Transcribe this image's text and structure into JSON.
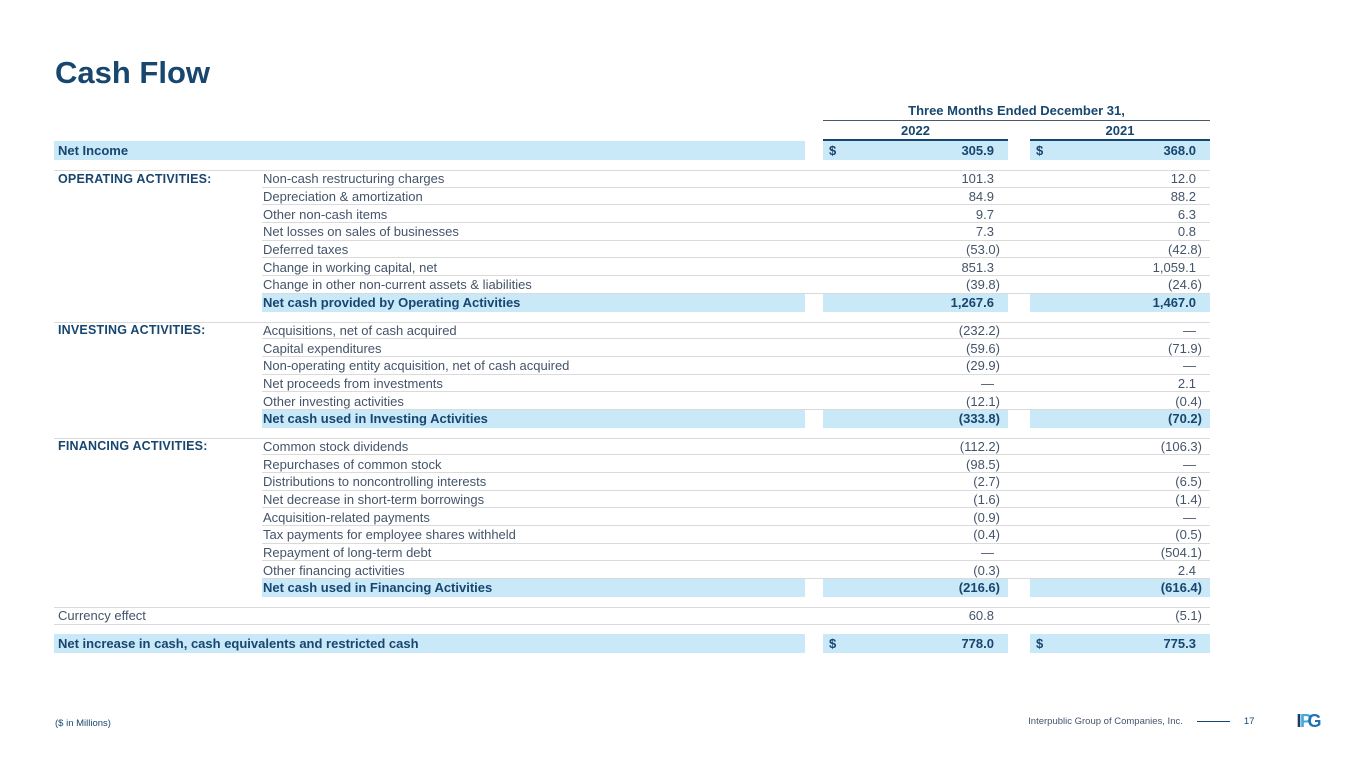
{
  "page": {
    "title": "Cash Flow",
    "footnote": "($ in Millions)",
    "footer": {
      "company": "Interpublic Group of Companies, Inc.",
      "page_number": "17",
      "logo_i": "I",
      "logo_p": "P",
      "logo_g": "G"
    }
  },
  "table": {
    "header": {
      "period": "Three Months Ended December 31,",
      "years": [
        "2022",
        "2021"
      ]
    },
    "net_income": {
      "label": "Net Income",
      "currency_symbol": "$",
      "values": [
        "305.9",
        "368.0"
      ]
    },
    "sections": [
      {
        "title": "OPERATING ACTIVITIES:",
        "items": [
          {
            "label": "Non-cash restructuring charges",
            "values": [
              "101.3",
              "12.0"
            ]
          },
          {
            "label": "Depreciation & amortization",
            "values": [
              "84.9",
              "88.2"
            ]
          },
          {
            "label": "Other non-cash items",
            "values": [
              "9.7",
              "6.3"
            ]
          },
          {
            "label": "Net losses on sales of businesses",
            "values": [
              "7.3",
              "0.8"
            ]
          },
          {
            "label": "Deferred taxes",
            "values": [
              "(53.0)",
              "(42.8)"
            ]
          },
          {
            "label": "Change in working capital, net",
            "values": [
              "851.3",
              "1,059.1"
            ]
          },
          {
            "label": "Change in other non-current assets & liabilities",
            "values": [
              "(39.8)",
              "(24.6)"
            ]
          }
        ],
        "total": {
          "label": "Net cash provided by Operating Activities",
          "values": [
            "1,267.6",
            "1,467.0"
          ]
        }
      },
      {
        "title": "INVESTING ACTIVITIES:",
        "items": [
          {
            "label": "Acquisitions, net of cash acquired",
            "values": [
              "(232.2)",
              "—"
            ]
          },
          {
            "label": "Capital expenditures",
            "values": [
              "(59.6)",
              "(71.9)"
            ]
          },
          {
            "label": "Non-operating entity acquisition, net of cash acquired",
            "values": [
              "(29.9)",
              "—"
            ]
          },
          {
            "label": "Net proceeds from investments",
            "values": [
              "—",
              "2.1"
            ]
          },
          {
            "label": "Other investing activities",
            "values": [
              "(12.1)",
              "(0.4)"
            ]
          }
        ],
        "total": {
          "label": "Net cash used in Investing Activities",
          "values": [
            "(333.8)",
            "(70.2)"
          ]
        }
      },
      {
        "title": "FINANCING ACTIVITIES:",
        "items": [
          {
            "label": "Common stock dividends",
            "values": [
              "(112.2)",
              "(106.3)"
            ]
          },
          {
            "label": "Repurchases of common stock",
            "values": [
              "(98.5)",
              "—"
            ]
          },
          {
            "label": "Distributions to noncontrolling interests",
            "values": [
              "(2.7)",
              "(6.5)"
            ]
          },
          {
            "label": "Net decrease in short-term borrowings",
            "values": [
              "(1.6)",
              "(1.4)"
            ]
          },
          {
            "label": "Acquisition-related payments",
            "values": [
              "(0.9)",
              "—"
            ]
          },
          {
            "label": "Tax payments for employee shares withheld",
            "values": [
              "(0.4)",
              "(0.5)"
            ]
          },
          {
            "label": "Repayment of long-term debt",
            "values": [
              "—",
              "(504.1)"
            ]
          },
          {
            "label": "Other financing activities",
            "values": [
              "(0.3)",
              "2.4"
            ]
          }
        ],
        "total": {
          "label": "Net cash used in Financing Activities",
          "values": [
            "(216.6)",
            "(616.4)"
          ]
        }
      }
    ],
    "currency_effect": {
      "label": "Currency effect",
      "values": [
        "60.8",
        "(5.1)"
      ]
    },
    "net_increase": {
      "label": "Net increase in cash, cash equivalents and restricted cash",
      "currency_symbol": "$",
      "values": [
        "778.0",
        "775.3"
      ]
    }
  },
  "colors": {
    "navy": "#17466F",
    "item_text": "#44546A",
    "highlight": "#C9E8F8",
    "separator": "#DADADA",
    "logo_light_blue": "#41A8DC"
  }
}
